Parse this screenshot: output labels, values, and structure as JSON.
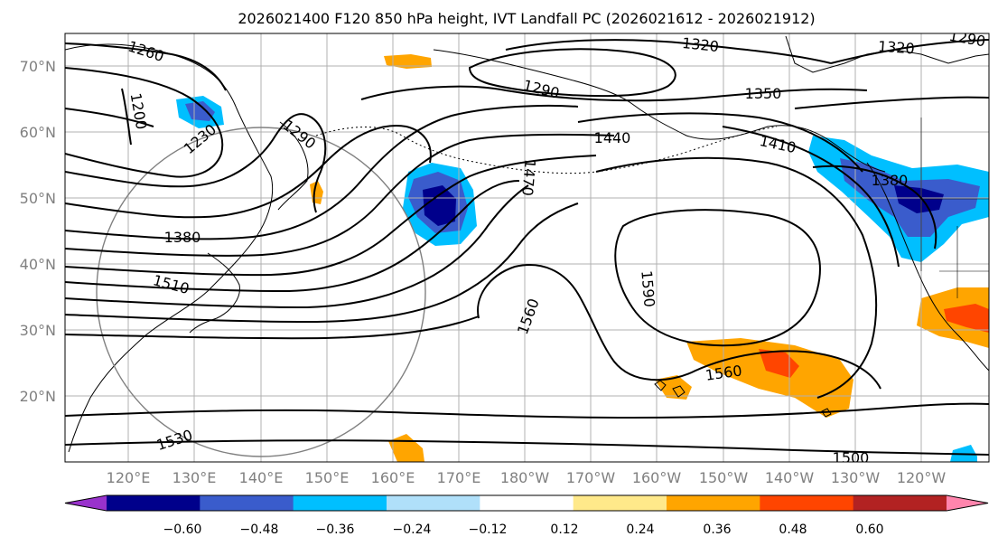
{
  "title": "2026021400 F120 850 hPa height, IVT Landfall PC (2026021612 - 2026021912)",
  "lat_labels": [
    "70°N",
    "60°N",
    "50°N",
    "40°N",
    "30°N",
    "20°N"
  ],
  "lon_labels": [
    "120°E",
    "130°E",
    "140°E",
    "150°E",
    "160°E",
    "170°E",
    "180°W",
    "170°W",
    "160°W",
    "150°W",
    "140°W",
    "130°W",
    "120°W"
  ],
  "contour_labels": [
    "1260",
    "1200",
    "1230",
    "1290",
    "1320",
    "1290",
    "1350",
    "1320",
    "1290",
    "1440",
    "1470",
    "1410",
    "1380",
    "1380",
    "1510",
    "1560",
    "1590",
    "1560",
    "1500",
    "1530"
  ],
  "colorbar": {
    "ticks": [
      "−0.60",
      "−0.48",
      "−0.36",
      "−0.24",
      "−0.12",
      "0.12",
      "0.24",
      "0.36",
      "0.48",
      "0.60"
    ],
    "colors": [
      "#9932cc",
      "#00008b",
      "#3a5ccc",
      "#00bfff",
      "#b0e0fa",
      "#ffffff",
      "#ffe98a",
      "#ffa500",
      "#ff4500",
      "#b22222",
      "#ff85ad"
    ]
  },
  "colors": {
    "contour": "#000000",
    "grid": "#b0b0b0",
    "circle": "#808080"
  }
}
